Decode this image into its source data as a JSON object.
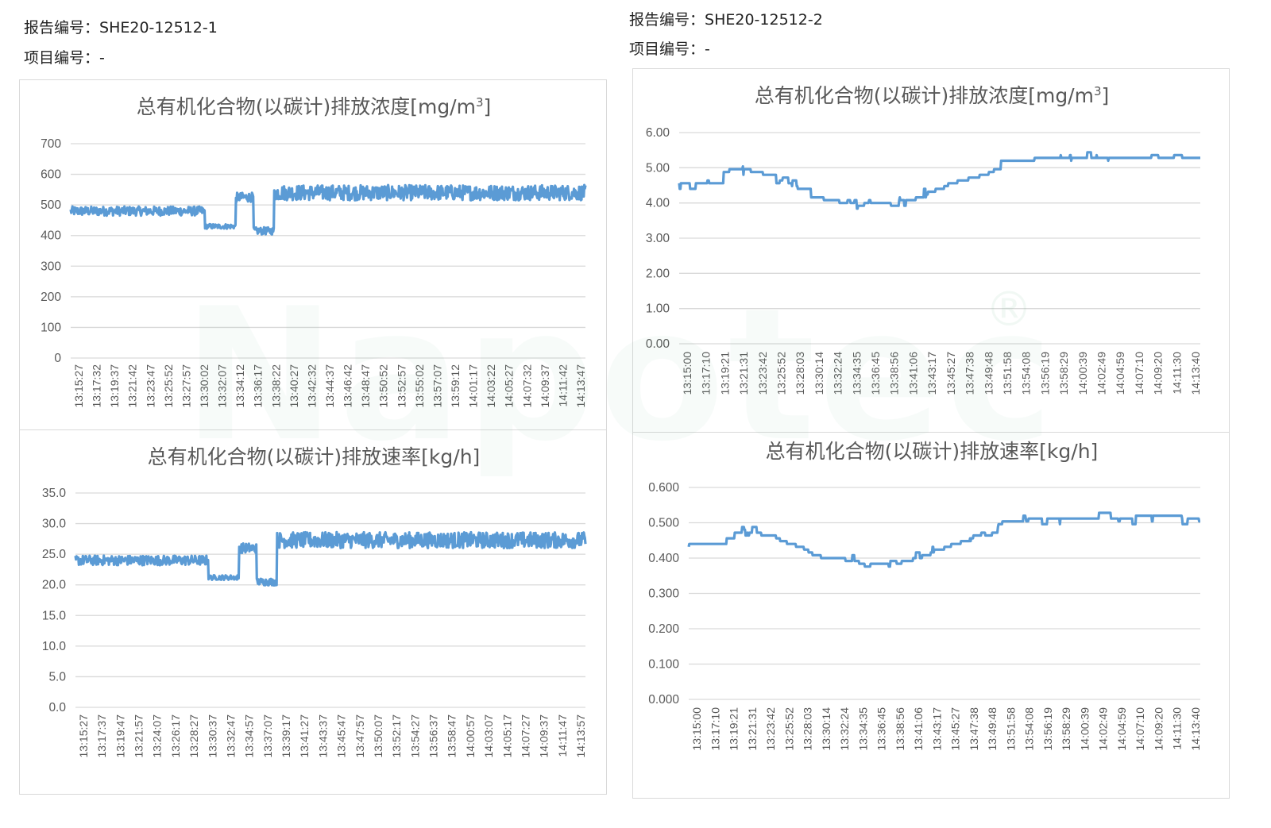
{
  "reports": [
    {
      "report_label": "报告编号：",
      "report_no": "SHE20-12512-1",
      "project_label": "项目编号：",
      "project_no": "-"
    },
    {
      "report_label": "报告编号：",
      "report_no": "SHE20-12512-2",
      "project_label": "项目编号：",
      "project_no": "-"
    }
  ],
  "watermark": "Napotec",
  "watermark_mark": "®",
  "series_color": "#5b9bd5",
  "chart_data": [
    {
      "type": "line",
      "title_main": "总有机化合物(以碳计)排放浓度[mg/m",
      "title_sup": "3",
      "title_end": "]",
      "yticks": [
        "0",
        "100",
        "200",
        "300",
        "400",
        "500",
        "600",
        "700"
      ],
      "ylim": [
        0,
        700
      ],
      "categories": [
        "13:15:27",
        "13:17:32",
        "13:19:37",
        "13:21:42",
        "13:23:47",
        "13:25:52",
        "13:27:57",
        "13:30:02",
        "13:32:07",
        "13:34:12",
        "13:36:17",
        "13:38:22",
        "13:40:27",
        "13:42:32",
        "13:44:37",
        "13:46:42",
        "13:48:47",
        "13:50:52",
        "13:52:57",
        "13:55:02",
        "13:57:07",
        "13:59:12",
        "14:01:17",
        "14:03:22",
        "14:05:27",
        "14:07:32",
        "14:09:37",
        "14:11:42",
        "14:13:47"
      ],
      "segments": [
        [
          0.0,
          0.26,
          480,
          15
        ],
        [
          0.26,
          0.32,
          430,
          8
        ],
        [
          0.32,
          0.355,
          525,
          15
        ],
        [
          0.355,
          0.395,
          415,
          12
        ],
        [
          0.395,
          1.0,
          540,
          25
        ]
      ],
      "grid": true
    },
    {
      "type": "line",
      "title_main": "总有机化合物(以碳计)排放速率[kg/h]",
      "title_sup": "",
      "title_end": "",
      "yticks": [
        "0.0",
        "5.0",
        "10.0",
        "15.0",
        "20.0",
        "25.0",
        "30.0",
        "35.0"
      ],
      "ylim": [
        0,
        35
      ],
      "categories": [
        "13:15:27",
        "13:17:37",
        "13:19:47",
        "13:21:57",
        "13:24:07",
        "13:26:17",
        "13:28:27",
        "13:30:37",
        "13:32:47",
        "13:34:57",
        "13:37:07",
        "13:39:17",
        "13:41:27",
        "13:43:37",
        "13:45:47",
        "13:47:57",
        "13:50:07",
        "13:52:17",
        "13:54:27",
        "13:56:37",
        "13:58:47",
        "14:00:57",
        "14:03:07",
        "14:05:17",
        "14:07:27",
        "14:09:37",
        "14:11:47",
        "14:13:57"
      ],
      "segments": [
        [
          0.0,
          0.26,
          24,
          0.8
        ],
        [
          0.26,
          0.32,
          21.2,
          0.4
        ],
        [
          0.32,
          0.355,
          26,
          0.8
        ],
        [
          0.355,
          0.395,
          20.5,
          0.6
        ],
        [
          0.395,
          1.0,
          27.3,
          1.3
        ]
      ],
      "grid": true
    },
    {
      "type": "line",
      "title_main": "总有机化合物(以碳计)排放浓度[mg/m",
      "title_sup": "3",
      "title_end": "]",
      "yticks": [
        "0.00",
        "1.00",
        "2.00",
        "3.00",
        "4.00",
        "5.00",
        "6.00"
      ],
      "ylim": [
        0,
        6
      ],
      "categories": [
        "13:15:00",
        "13:17:10",
        "13:19:21",
        "13:21:31",
        "13:23:42",
        "13:25:52",
        "13:28:03",
        "13:30:14",
        "13:32:24",
        "13:34:35",
        "13:36:45",
        "13:38:56",
        "13:41:06",
        "13:43:17",
        "13:45:27",
        "13:47:38",
        "13:49:48",
        "13:51:58",
        "13:54:08",
        "13:56:19",
        "13:58:29",
        "14:00:39",
        "14:02:49",
        "14:04:59",
        "14:07:10",
        "14:09:20",
        "14:11:30",
        "14:13:40"
      ],
      "profile": [
        [
          0.0,
          4.55
        ],
        [
          0.07,
          4.55
        ],
        [
          0.08,
          4.9
        ],
        [
          0.12,
          4.95
        ],
        [
          0.16,
          4.8
        ],
        [
          0.22,
          4.5
        ],
        [
          0.25,
          4.2
        ],
        [
          0.3,
          4.05
        ],
        [
          0.34,
          3.95
        ],
        [
          0.4,
          4.0
        ],
        [
          0.45,
          4.1
        ],
        [
          0.48,
          4.3
        ],
        [
          0.52,
          4.55
        ],
        [
          0.57,
          4.75
        ],
        [
          0.6,
          4.9
        ],
        [
          0.61,
          5.2
        ],
        [
          0.7,
          5.25
        ],
        [
          0.75,
          5.3
        ],
        [
          0.85,
          5.3
        ],
        [
          0.95,
          5.35
        ],
        [
          1.0,
          5.2
        ]
      ],
      "noise": 0.08,
      "grid": true
    },
    {
      "type": "line",
      "title_main": "总有机化合物(以碳计)排放速率[kg/h]",
      "title_sup": "",
      "title_end": "",
      "yticks": [
        "0.000",
        "0.100",
        "0.200",
        "0.300",
        "0.400",
        "0.500",
        "0.600"
      ],
      "ylim": [
        0,
        0.6
      ],
      "categories": [
        "13:15:00",
        "13:17:10",
        "13:19:21",
        "13:21:31",
        "13:23:42",
        "13:25:52",
        "13:28:03",
        "13:30:14",
        "13:32:24",
        "13:34:35",
        "13:36:45",
        "13:38:56",
        "13:41:06",
        "13:43:17",
        "13:45:27",
        "13:47:38",
        "13:49:48",
        "13:51:58",
        "13:54:08",
        "13:56:19",
        "13:58:29",
        "14:00:39",
        "14:02:49",
        "14:04:59",
        "14:07:10",
        "14:09:20",
        "14:11:30",
        "14:13:40"
      ],
      "profile": [
        [
          0.0,
          0.44
        ],
        [
          0.07,
          0.44
        ],
        [
          0.08,
          0.47
        ],
        [
          0.12,
          0.475
        ],
        [
          0.16,
          0.46
        ],
        [
          0.22,
          0.43
        ],
        [
          0.25,
          0.405
        ],
        [
          0.3,
          0.395
        ],
        [
          0.34,
          0.385
        ],
        [
          0.4,
          0.39
        ],
        [
          0.45,
          0.4
        ],
        [
          0.48,
          0.42
        ],
        [
          0.52,
          0.44
        ],
        [
          0.57,
          0.46
        ],
        [
          0.6,
          0.48
        ],
        [
          0.61,
          0.505
        ],
        [
          0.7,
          0.51
        ],
        [
          0.75,
          0.515
        ],
        [
          0.85,
          0.515
        ],
        [
          0.95,
          0.52
        ],
        [
          1.0,
          0.5
        ]
      ],
      "noise": 0.008,
      "grid": true
    }
  ]
}
